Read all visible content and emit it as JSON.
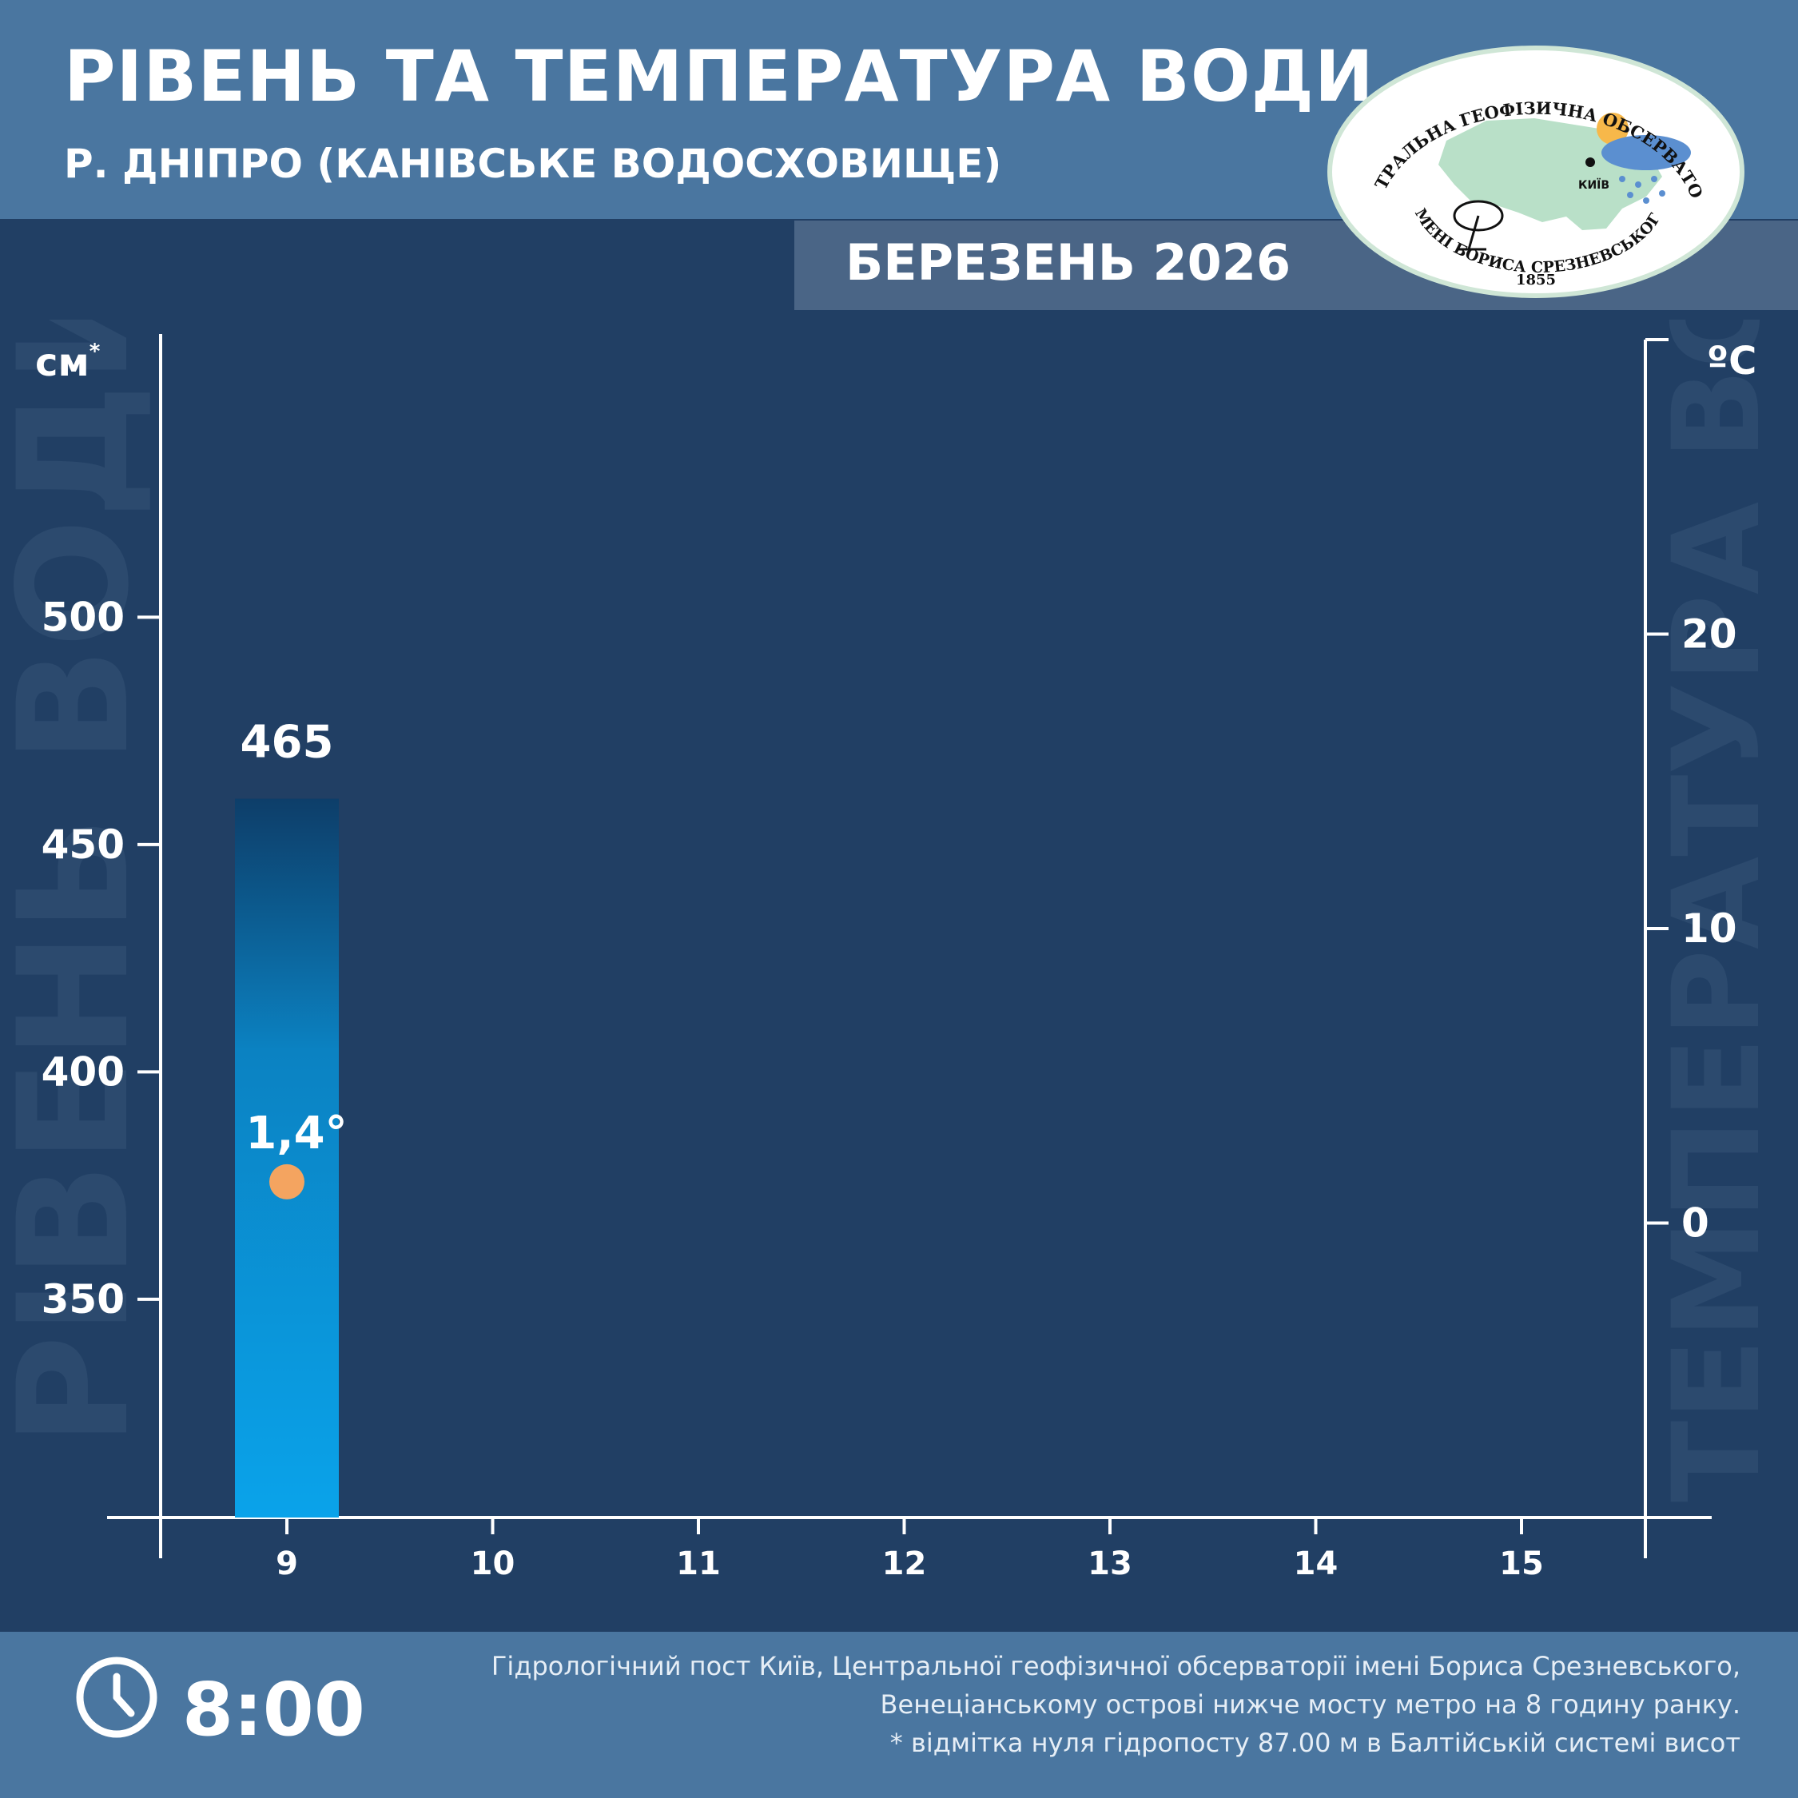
{
  "header": {
    "title": "РІВЕНЬ ТА ТЕМПЕРАТУРА ВОДИ",
    "subtitle": "Р. ДНІПРО (КАНІВСЬКЕ ВОДОСХОВИЩЕ)",
    "month": "БЕРЕЗЕНЬ 2026"
  },
  "logo": {
    "top_text": "ЦЕНТРАЛЬНА ГЕОФІЗИЧНА ОБСЕРВАТОРІЯ",
    "bottom_text": "ІМЕНІ БОРИСА СРЕЗНЕВСЬКОГО",
    "year": "1855",
    "city": "КИЇВ"
  },
  "chart_data": {
    "type": "bar",
    "categories": [
      "9",
      "10",
      "11",
      "12",
      "13",
      "14",
      "15"
    ],
    "series": [
      {
        "axis": "left",
        "values": [
          465,
          null,
          null,
          null,
          null,
          null,
          null
        ],
        "labels": [
          "465"
        ],
        "color": "#0aa0e8"
      },
      {
        "axis": "right",
        "type": "scatter",
        "values": [
          1.4,
          null,
          null,
          null,
          null,
          null,
          null
        ],
        "labels": [
          "1,4°"
        ],
        "color": "#f4a460"
      }
    ],
    "left_axis": {
      "unit": "см",
      "unit_mark": "*",
      "title": "РІВЕНЬ ВОДИ",
      "ticks": [
        350,
        400,
        450,
        500
      ],
      "range": [
        302,
        560
      ]
    },
    "right_axis": {
      "unit": "ºC",
      "title": "ТЕМПЕРАТУРА ВОДИ",
      "ticks": [
        0,
        10,
        20
      ],
      "range": [
        -10,
        30
      ]
    }
  },
  "footer": {
    "time": "8:00",
    "note_lines": [
      "Гідрологічний пост Київ, Центральної геофізичної обсерваторії імені Бориса Срезневського,",
      "Венеціанському острові нижче мосту метро  на 8 годину ранку.",
      "* відмітка нуля гідропосту 87.00 м в Балтійській системі висот"
    ]
  }
}
